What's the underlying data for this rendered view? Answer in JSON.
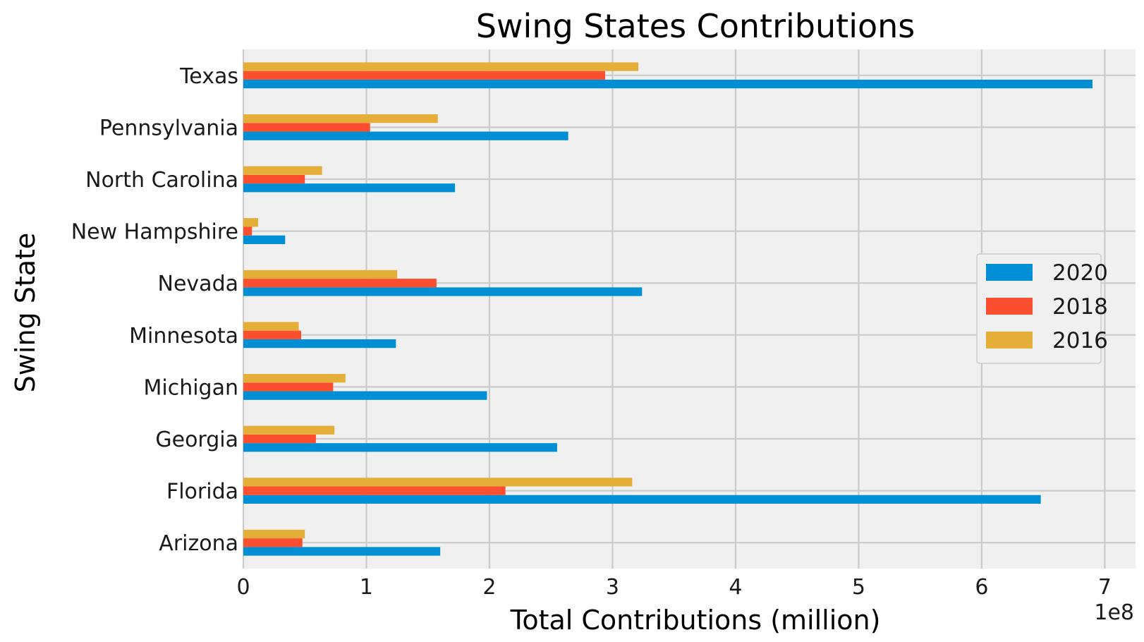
{
  "chart_data": {
    "type": "bar",
    "orientation": "horizontal",
    "title": "Swing States Contributions",
    "xlabel": "Total Contributions (million)",
    "ylabel": "Swing State",
    "x_offset_label": "1e8",
    "xlim": [
      0,
      7.25
    ],
    "xticks": [
      "0",
      "1",
      "2",
      "3",
      "4",
      "5",
      "6",
      "7"
    ],
    "grid": true,
    "legend_position": "center right",
    "categories": [
      "Arizona",
      "Florida",
      "Georgia",
      "Michigan",
      "Minnesota",
      "Nevada",
      "New Hampshire",
      "North Carolina",
      "Pennsylvania",
      "Texas"
    ],
    "series": [
      {
        "name": "2020",
        "color": "#008fd5",
        "values": [
          1.6,
          6.48,
          2.55,
          1.98,
          1.24,
          3.24,
          0.34,
          1.72,
          2.64,
          6.9
        ]
      },
      {
        "name": "2018",
        "color": "#fc4f30",
        "values": [
          0.48,
          2.13,
          0.59,
          0.73,
          0.47,
          1.57,
          0.07,
          0.5,
          1.03,
          2.94
        ]
      },
      {
        "name": "2016",
        "color": "#e5ae38",
        "values": [
          0.5,
          3.16,
          0.74,
          0.83,
          0.45,
          1.25,
          0.12,
          0.64,
          1.58,
          3.21
        ]
      }
    ]
  }
}
